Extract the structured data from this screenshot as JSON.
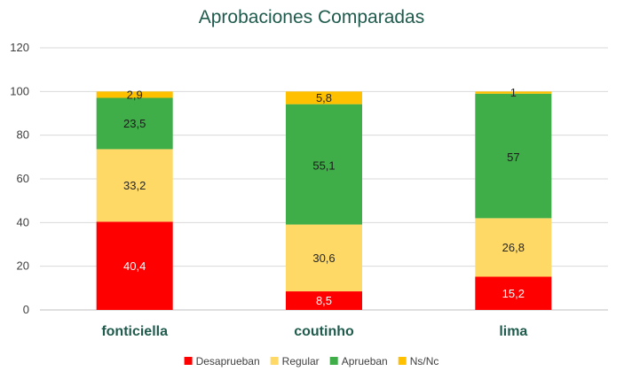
{
  "chart_data": {
    "type": "bar",
    "stacked": true,
    "title": "Aprobaciones Comparadas",
    "xlabel": "",
    "ylabel": "",
    "categories": [
      "fonticiella",
      "coutinho",
      "lima"
    ],
    "ylim": [
      0,
      120
    ],
    "yticks": [
      0,
      20,
      40,
      60,
      80,
      100,
      120
    ],
    "grid": true,
    "legend_position": "bottom",
    "series": [
      {
        "name": "Desaprueban",
        "color": "#ff0000",
        "values": [
          40.4,
          8.5,
          15.2
        ],
        "labels": [
          "40,4",
          "8,5",
          "15,2"
        ],
        "label_color": "#ffffff"
      },
      {
        "name": "Regular",
        "color": "#ffd966",
        "values": [
          33.2,
          30.6,
          26.8
        ],
        "labels": [
          "33,2",
          "30,6",
          "26,8"
        ],
        "label_color": "#262626"
      },
      {
        "name": "Aprueban",
        "color": "#3fae49",
        "values": [
          23.5,
          55.1,
          57
        ],
        "labels": [
          "23,5",
          "55,1",
          "57"
        ],
        "label_color": "#1a1a1a"
      },
      {
        "name": "Ns/Nc",
        "color": "#ffc000",
        "values": [
          2.9,
          5.8,
          1
        ],
        "labels": [
          "2,9",
          "5,8",
          "1"
        ],
        "label_color": "#262626"
      }
    ]
  }
}
